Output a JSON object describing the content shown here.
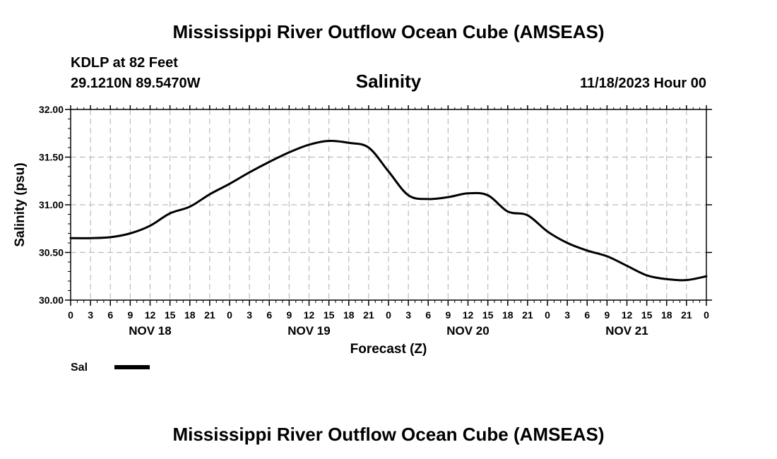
{
  "header": {
    "title": "Mississippi River Outflow Ocean Cube (AMSEAS)",
    "station": "KDLP at 82 Feet",
    "coords": "29.1210N  89.5470W",
    "variable": "Salinity",
    "datetime": "11/18/2023 Hour 00"
  },
  "footer": {
    "title": "Mississippi River Outflow Ocean Cube (AMSEAS)"
  },
  "legend": {
    "label": "Sal"
  },
  "chart_data": {
    "type": "line",
    "title": "Salinity",
    "xlabel": "Forecast (Z)",
    "ylabel": "Salinity (psu)",
    "xlim": [
      0,
      96
    ],
    "ylim": [
      30.0,
      32.0
    ],
    "grid": true,
    "legend_position": "bottom-left",
    "ytick_labels": [
      "30.00",
      "30.50",
      "31.00",
      "31.50",
      "32.00"
    ],
    "xtick_labels": [
      "0",
      "3",
      "6",
      "9",
      "12",
      "15",
      "18",
      "21",
      "0",
      "3",
      "6",
      "9",
      "12",
      "15",
      "18",
      "21",
      "0",
      "3",
      "6",
      "9",
      "12",
      "15",
      "18",
      "21",
      "0",
      "3",
      "6",
      "9",
      "12",
      "15",
      "18",
      "21",
      "0"
    ],
    "day_labels": [
      {
        "label": "NOV 18",
        "x": 12
      },
      {
        "label": "NOV 19",
        "x": 36
      },
      {
        "label": "NOV 20",
        "x": 60
      },
      {
        "label": "NOV 21",
        "x": 84
      }
    ],
    "series": [
      {
        "name": "Sal",
        "x": [
          0,
          3,
          6,
          9,
          12,
          15,
          18,
          21,
          24,
          27,
          30,
          33,
          36,
          39,
          42,
          45,
          48,
          51,
          54,
          57,
          60,
          63,
          66,
          69,
          72,
          75,
          78,
          81,
          84,
          87,
          90,
          93,
          96
        ],
        "values": [
          30.65,
          30.65,
          30.66,
          30.7,
          30.78,
          30.91,
          30.98,
          31.11,
          31.22,
          31.34,
          31.45,
          31.55,
          31.63,
          31.67,
          31.65,
          31.6,
          31.35,
          31.1,
          31.06,
          31.08,
          31.12,
          31.1,
          30.93,
          30.89,
          30.72,
          30.6,
          30.52,
          30.46,
          30.36,
          30.26,
          30.22,
          30.21,
          30.25
        ]
      }
    ]
  }
}
